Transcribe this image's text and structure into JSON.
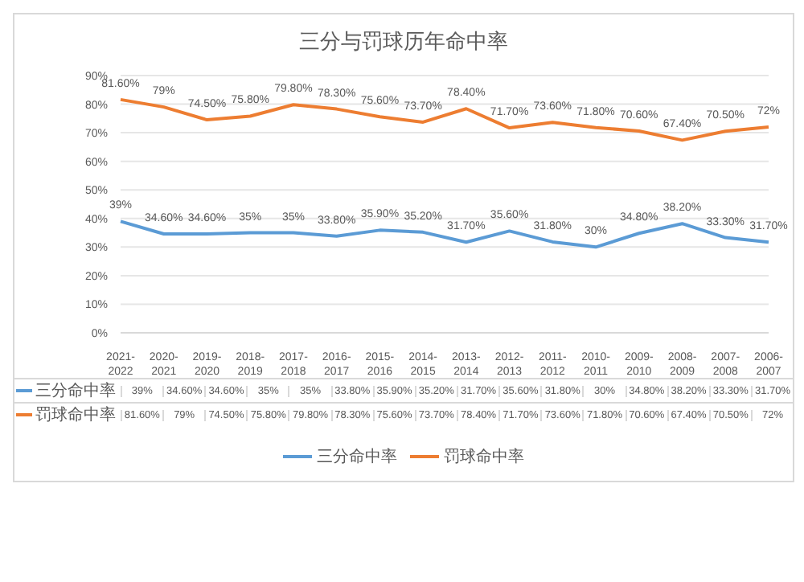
{
  "chart_data": {
    "type": "line",
    "title": "三分与罚球历年命中率",
    "categories": [
      "2021-2022",
      "2020-2021",
      "2019-2020",
      "2018-2019",
      "2017-2018",
      "2016-2017",
      "2015-2016",
      "2014-2015",
      "2013-2014",
      "2012-2013",
      "2011-2012",
      "2010-2011",
      "2009-2010",
      "2008-2009",
      "2007-2008",
      "2006-2007"
    ],
    "series": [
      {
        "name": "三分命中率",
        "color": "#5b9bd5",
        "values": [
          39,
          34.6,
          34.6,
          35,
          35,
          33.8,
          35.9,
          35.2,
          31.7,
          35.6,
          31.8,
          30,
          34.8,
          38.2,
          33.3,
          31.7
        ],
        "value_labels": [
          "39%",
          "34.60%",
          "34.60%",
          "35%",
          "35%",
          "33.80%",
          "35.90%",
          "35.20%",
          "31.70%",
          "35.60%",
          "31.80%",
          "30%",
          "34.80%",
          "38.20%",
          "33.30%",
          "31.70%"
        ]
      },
      {
        "name": "罚球命中率",
        "color": "#ed7d31",
        "values": [
          81.6,
          79,
          74.5,
          75.8,
          79.8,
          78.3,
          75.6,
          73.7,
          78.4,
          71.7,
          73.6,
          71.8,
          70.6,
          67.4,
          70.5,
          72
        ],
        "value_labels": [
          "81.60%",
          "79%",
          "74.50%",
          "75.80%",
          "79.80%",
          "78.30%",
          "75.60%",
          "73.70%",
          "78.40%",
          "71.70%",
          "73.60%",
          "71.80%",
          "70.60%",
          "67.40%",
          "70.50%",
          "72%"
        ]
      }
    ],
    "ylim": [
      0,
      90
    ],
    "yticks": [
      {
        "value": 0,
        "label": "0%"
      },
      {
        "value": 10,
        "label": "10%"
      },
      {
        "value": 20,
        "label": "20%"
      },
      {
        "value": 30,
        "label": "30%"
      },
      {
        "value": 40,
        "label": "40%"
      },
      {
        "value": 50,
        "label": "50%"
      },
      {
        "value": 60,
        "label": "60%"
      },
      {
        "value": 70,
        "label": "70%"
      },
      {
        "value": 80,
        "label": "80%"
      },
      {
        "value": 90,
        "label": "90%"
      }
    ],
    "grid": "y",
    "legend": "bottom",
    "marker": "none",
    "line_style": "solid"
  }
}
